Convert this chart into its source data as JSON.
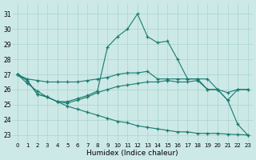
{
  "xlabel": "Humidex (Indice chaleur)",
  "bg_color": "#cce9e7",
  "grid_color": "#a8d4d0",
  "line_color": "#1a7a6e",
  "xlim": [
    -0.5,
    23.5
  ],
  "ylim": [
    22.5,
    31.7
  ],
  "xticks": [
    0,
    1,
    2,
    3,
    4,
    5,
    6,
    7,
    8,
    9,
    10,
    11,
    12,
    13,
    14,
    15,
    16,
    17,
    18,
    19,
    20,
    21,
    22,
    23
  ],
  "yticks": [
    23,
    24,
    25,
    26,
    27,
    28,
    29,
    30,
    31
  ],
  "line1_y": [
    27.0,
    26.7,
    26.6,
    26.5,
    26.5,
    26.5,
    26.5,
    26.6,
    26.7,
    26.8,
    27.0,
    27.1,
    27.1,
    27.2,
    26.7,
    26.7,
    26.7,
    26.7,
    26.7,
    26.7,
    26.0,
    25.3,
    26.0,
    26.0
  ],
  "line2_y": [
    27.0,
    26.6,
    25.7,
    25.5,
    25.2,
    25.2,
    25.4,
    25.6,
    25.9,
    28.8,
    29.5,
    30.0,
    31.0,
    29.5,
    29.1,
    29.2,
    28.0,
    26.7,
    26.7,
    26.0,
    26.0,
    25.3,
    23.7,
    23.0
  ],
  "line3_y": [
    27.0,
    26.6,
    25.7,
    25.5,
    25.2,
    25.1,
    25.3,
    25.5,
    25.8,
    26.0,
    26.2,
    26.3,
    26.4,
    26.5,
    26.5,
    26.6,
    26.5,
    26.5,
    26.6,
    26.0,
    26.0,
    25.8,
    26.0,
    26.0
  ],
  "line4_y": [
    27.0,
    26.4,
    25.9,
    25.5,
    25.2,
    24.9,
    24.7,
    24.5,
    24.3,
    24.1,
    23.9,
    23.8,
    23.6,
    23.5,
    23.4,
    23.3,
    23.2,
    23.2,
    23.1,
    23.1,
    23.1,
    23.05,
    23.02,
    23.0
  ]
}
